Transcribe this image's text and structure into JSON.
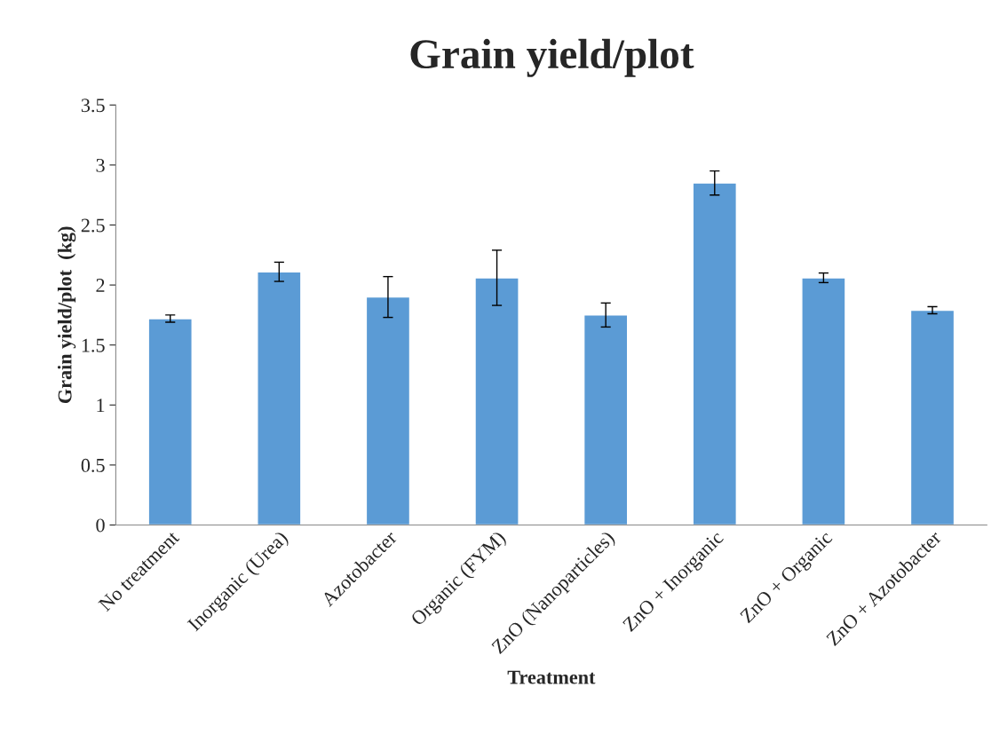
{
  "chart_data": {
    "type": "bar",
    "title": "Grain yield/plot",
    "xlabel": "Treatment",
    "ylabel": "Grain yield/plot  (kg)",
    "categories": [
      "No treatment",
      "Inorganic (Urea)",
      "Azotobacter",
      "Organic (FYM)",
      "ZnO (Nanoparticles)",
      "ZnO + Inorganic",
      "ZnO + Organic",
      "ZnO + Azotobacter"
    ],
    "values": [
      1.72,
      2.11,
      1.9,
      2.06,
      1.75,
      2.85,
      2.06,
      1.79
    ],
    "errors": [
      0.03,
      0.08,
      0.17,
      0.23,
      0.1,
      0.1,
      0.04,
      0.03
    ],
    "color": "#5b9bd5",
    "ylim": [
      0,
      3.5
    ],
    "yticks": [
      0,
      0.5,
      1,
      1.5,
      2,
      2.5,
      3,
      3.5
    ],
    "grid": false,
    "legend": false
  }
}
